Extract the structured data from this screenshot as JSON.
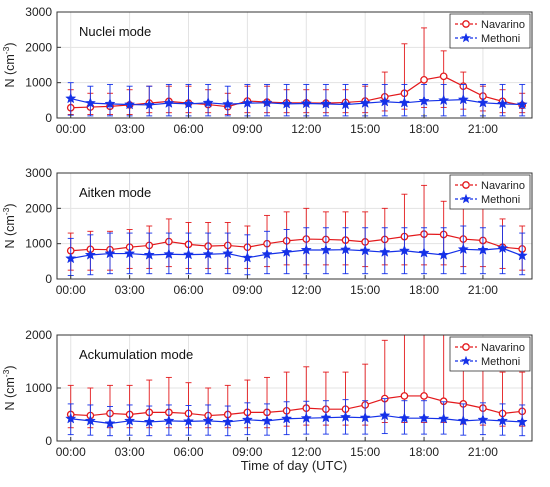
{
  "figure": {
    "xlabel": "Time of day (UTC)",
    "x_tick_labels": [
      "00:00",
      "03:00",
      "06:00",
      "09:00",
      "12:00",
      "15:00",
      "18:00",
      "21:00"
    ],
    "x_ticks": [
      0,
      3,
      6,
      9,
      12,
      15,
      18,
      21
    ],
    "xlim": [
      -0.7,
      23.5
    ]
  },
  "chart_data": [
    {
      "type": "line",
      "title": "Nuclei mode",
      "xlabel": "",
      "ylabel_main": "N (cm",
      "ylabel_sup": "-3",
      "ylabel_end": ")",
      "ylim": [
        0,
        3000
      ],
      "yticks": [
        0,
        1000,
        2000,
        3000
      ],
      "ytick_labels": [
        "0",
        "1000",
        "2000",
        "3000"
      ],
      "grid": true,
      "legend_position": "top-right",
      "x": [
        0,
        1,
        2,
        3,
        4,
        5,
        6,
        7,
        8,
        9,
        10,
        11,
        12,
        13,
        14,
        15,
        16,
        17,
        18,
        19,
        20,
        21,
        22,
        23
      ],
      "series": [
        {
          "name": "Navarino",
          "color": "#e3191c",
          "marker": "circle",
          "values": [
            290,
            310,
            330,
            370,
            420,
            470,
            420,
            380,
            320,
            480,
            450,
            430,
            430,
            420,
            440,
            480,
            600,
            700,
            1080,
            1180,
            900,
            620,
            470,
            360
          ],
          "err_upper": [
            800,
            700,
            700,
            800,
            900,
            900,
            900,
            800,
            700,
            900,
            900,
            800,
            800,
            800,
            800,
            900,
            1300,
            2100,
            2550,
            1900,
            1300,
            900,
            800,
            700
          ],
          "err_lower": [
            100,
            100,
            100,
            100,
            150,
            150,
            150,
            150,
            100,
            150,
            150,
            150,
            150,
            150,
            150,
            150,
            200,
            250,
            300,
            300,
            250,
            200,
            150,
            150
          ]
        },
        {
          "name": "Methoni",
          "color": "#1531e8",
          "marker": "star",
          "values": [
            550,
            420,
            400,
            380,
            370,
            420,
            400,
            430,
            390,
            420,
            430,
            400,
            410,
            400,
            380,
            420,
            460,
            430,
            480,
            500,
            520,
            430,
            400,
            380
          ],
          "err_upper": [
            1000,
            900,
            950,
            900,
            900,
            950,
            950,
            950,
            900,
            950,
            950,
            950,
            950,
            950,
            950,
            950,
            950,
            950,
            950,
            950,
            950,
            950,
            950,
            950
          ],
          "err_lower": [
            80,
            60,
            60,
            60,
            60,
            60,
            60,
            60,
            60,
            60,
            60,
            60,
            60,
            60,
            60,
            60,
            60,
            60,
            60,
            60,
            60,
            60,
            60,
            60
          ]
        }
      ]
    },
    {
      "type": "line",
      "title": "Aitken mode",
      "xlabel": "",
      "ylabel_main": "N (cm",
      "ylabel_sup": "-3",
      "ylabel_end": ")",
      "ylim": [
        0,
        3000
      ],
      "yticks": [
        0,
        1000,
        2000,
        3000
      ],
      "ytick_labels": [
        "0",
        "1000",
        "2000",
        "3000"
      ],
      "grid": true,
      "legend_position": "top-right",
      "x": [
        0,
        1,
        2,
        3,
        4,
        5,
        6,
        7,
        8,
        9,
        10,
        11,
        12,
        13,
        14,
        15,
        16,
        17,
        18,
        19,
        20,
        21,
        22,
        23
      ],
      "series": [
        {
          "name": "Navarino",
          "color": "#e3191c",
          "marker": "circle",
          "values": [
            800,
            840,
            830,
            900,
            950,
            1060,
            980,
            930,
            950,
            900,
            1000,
            1080,
            1130,
            1120,
            1100,
            1050,
            1120,
            1200,
            1270,
            1260,
            1130,
            1090,
            900,
            850
          ],
          "err_upper": [
            1300,
            1350,
            1350,
            1400,
            1500,
            1700,
            1600,
            1600,
            1600,
            1500,
            1800,
            1900,
            2000,
            1900,
            1900,
            1900,
            2000,
            2400,
            2650,
            2200,
            2000,
            2000,
            1700,
            1500
          ],
          "err_lower": [
            250,
            250,
            250,
            300,
            300,
            350,
            300,
            300,
            300,
            300,
            350,
            400,
            400,
            400,
            400,
            350,
            400,
            400,
            400,
            400,
            350,
            350,
            300,
            250
          ]
        },
        {
          "name": "Methoni",
          "color": "#1531e8",
          "marker": "star",
          "values": [
            580,
            680,
            720,
            720,
            680,
            700,
            690,
            700,
            720,
            600,
            700,
            760,
            820,
            820,
            830,
            800,
            760,
            800,
            740,
            680,
            840,
            820,
            870,
            660
          ],
          "err_upper": [
            1150,
            1250,
            1300,
            1300,
            1300,
            1300,
            1300,
            1300,
            1300,
            1250,
            1350,
            1400,
            1450,
            1450,
            1450,
            1450,
            1450,
            1450,
            1450,
            1450,
            1500,
            1450,
            1500,
            1300
          ],
          "err_lower": [
            100,
            120,
            150,
            150,
            150,
            150,
            150,
            150,
            150,
            120,
            150,
            150,
            150,
            150,
            150,
            150,
            150,
            150,
            150,
            150,
            150,
            150,
            150,
            120
          ]
        }
      ]
    },
    {
      "type": "line",
      "title": "Ackumulation mode",
      "xlabel": "Time of day (UTC)",
      "ylabel_main": "N (cm",
      "ylabel_sup": "-3",
      "ylabel_end": ")",
      "ylim": [
        0,
        2000
      ],
      "yticks": [
        0,
        1000,
        2000
      ],
      "ytick_labels": [
        "0",
        "1000",
        "2000"
      ],
      "grid": true,
      "legend_position": "top-right",
      "x": [
        0,
        1,
        2,
        3,
        4,
        5,
        6,
        7,
        8,
        9,
        10,
        11,
        12,
        13,
        14,
        15,
        16,
        17,
        18,
        19,
        20,
        21,
        22,
        23
      ],
      "series": [
        {
          "name": "Navarino",
          "color": "#e3191c",
          "marker": "circle",
          "values": [
            500,
            480,
            520,
            500,
            540,
            540,
            520,
            480,
            500,
            540,
            540,
            570,
            620,
            600,
            600,
            680,
            800,
            850,
            850,
            750,
            700,
            620,
            520,
            560
          ],
          "err_upper": [
            1050,
            1000,
            1050,
            1050,
            1150,
            1200,
            1100,
            1000,
            1050,
            1150,
            1200,
            1300,
            1400,
            1300,
            1300,
            1450,
            1900,
            2000,
            2000,
            2000,
            1800,
            1500,
            1300,
            1300
          ],
          "err_lower": [
            250,
            250,
            250,
            250,
            250,
            250,
            250,
            250,
            250,
            250,
            250,
            280,
            300,
            300,
            300,
            300,
            350,
            350,
            350,
            350,
            320,
            300,
            280,
            280
          ]
        },
        {
          "name": "Methoni",
          "color": "#1531e8",
          "marker": "star",
          "values": [
            420,
            380,
            330,
            380,
            360,
            380,
            370,
            380,
            360,
            400,
            380,
            420,
            430,
            440,
            450,
            440,
            480,
            430,
            430,
            420,
            380,
            400,
            380,
            360
          ],
          "err_upper": [
            700,
            680,
            650,
            680,
            660,
            680,
            670,
            680,
            660,
            720,
            700,
            740,
            750,
            760,
            780,
            760,
            800,
            760,
            760,
            740,
            700,
            720,
            700,
            680
          ],
          "err_lower": [
            120,
            110,
            100,
            110,
            100,
            110,
            110,
            110,
            100,
            120,
            110,
            120,
            130,
            130,
            130,
            130,
            140,
            130,
            130,
            130,
            110,
            120,
            110,
            100
          ]
        }
      ]
    }
  ]
}
